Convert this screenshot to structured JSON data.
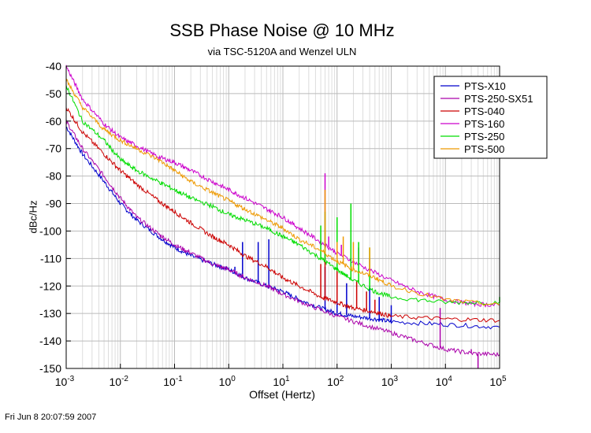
{
  "title": "SSB Phase Noise @ 10 MHz",
  "subtitle": "via TSC-5120A and Wenzel ULN",
  "timestamp": "Fri Jun  8 20:07:59 2007",
  "chart_data": {
    "type": "line",
    "xlabel": "Offset (Hertz)",
    "ylabel": "dBc/Hz",
    "xscale": "log",
    "xlim": [
      0.001,
      100000
    ],
    "ylim": [
      -150,
      -40
    ],
    "x_ticks": [
      {
        "base": "10",
        "exp": "-3"
      },
      {
        "base": "10",
        "exp": "-2"
      },
      {
        "base": "10",
        "exp": "-1"
      },
      {
        "base": "10",
        "exp": "0"
      },
      {
        "base": "10",
        "exp": "1"
      },
      {
        "base": "10",
        "exp": "2"
      },
      {
        "base": "10",
        "exp": "3"
      },
      {
        "base": "10",
        "exp": "4"
      },
      {
        "base": "10",
        "exp": "5"
      }
    ],
    "y_ticks": [
      "-40",
      "-50",
      "-60",
      "-70",
      "-80",
      "-90",
      "-100",
      "-110",
      "-120",
      "-130",
      "-140",
      "-150"
    ],
    "grid": true,
    "legend_position": "top-right",
    "series": [
      {
        "name": "PTS-X10",
        "color": "#0000cc",
        "points": [
          [
            0.001,
            -62
          ],
          [
            0.002,
            -72
          ],
          [
            0.005,
            -82
          ],
          [
            0.01,
            -90
          ],
          [
            0.02,
            -96
          ],
          [
            0.05,
            -102
          ],
          [
            0.1,
            -106
          ],
          [
            0.2,
            -109
          ],
          [
            0.5,
            -112
          ],
          [
            1,
            -114
          ],
          [
            2,
            -117
          ],
          [
            5,
            -120
          ],
          [
            10,
            -122
          ],
          [
            20,
            -125
          ],
          [
            50,
            -128
          ],
          [
            100,
            -130
          ],
          [
            200,
            -131
          ],
          [
            500,
            -132
          ],
          [
            1000,
            -133
          ],
          [
            10000,
            -134
          ],
          [
            100000,
            -135
          ]
        ],
        "spurs": [
          [
            1.3,
            -113
          ],
          [
            1.8,
            -104
          ],
          [
            3.5,
            -104
          ],
          [
            5.5,
            -103
          ],
          [
            60,
            -113
          ],
          [
            100,
            -116
          ],
          [
            150,
            -119
          ],
          [
            400,
            -120
          ],
          [
            600,
            -124
          ],
          [
            1000,
            -127
          ]
        ]
      },
      {
        "name": "PTS-250-SX51",
        "color": "#aa00aa",
        "points": [
          [
            0.001,
            -60
          ],
          [
            0.002,
            -70
          ],
          [
            0.005,
            -80
          ],
          [
            0.01,
            -88
          ],
          [
            0.02,
            -95
          ],
          [
            0.05,
            -101
          ],
          [
            0.1,
            -105
          ],
          [
            0.2,
            -108
          ],
          [
            0.5,
            -112
          ],
          [
            1,
            -114
          ],
          [
            2,
            -117
          ],
          [
            5,
            -120
          ],
          [
            10,
            -123
          ],
          [
            30,
            -127
          ],
          [
            100,
            -131
          ],
          [
            300,
            -134
          ],
          [
            1000,
            -137
          ],
          [
            3000,
            -140
          ],
          [
            10000,
            -143
          ],
          [
            30000,
            -144.5
          ],
          [
            100000,
            -145
          ]
        ],
        "spurs": [
          [
            8000,
            -128
          ],
          [
            30000,
            -143
          ],
          [
            40000,
            -150
          ]
        ]
      },
      {
        "name": "PTS-040",
        "color": "#cc0000",
        "points": [
          [
            0.001,
            -55
          ],
          [
            0.002,
            -64
          ],
          [
            0.005,
            -72
          ],
          [
            0.01,
            -78
          ],
          [
            0.02,
            -83
          ],
          [
            0.05,
            -89
          ],
          [
            0.1,
            -93
          ],
          [
            0.2,
            -97
          ],
          [
            0.5,
            -102
          ],
          [
            1,
            -105
          ],
          [
            2,
            -109
          ],
          [
            5,
            -113
          ],
          [
            10,
            -117
          ],
          [
            20,
            -120
          ],
          [
            50,
            -124
          ],
          [
            100,
            -126
          ],
          [
            200,
            -128
          ],
          [
            500,
            -129.5
          ],
          [
            1000,
            -131
          ],
          [
            10000,
            -132
          ],
          [
            100000,
            -132.5
          ]
        ],
        "spurs": [
          [
            50,
            -112
          ],
          [
            60,
            -108
          ],
          [
            100,
            -112
          ],
          [
            230,
            -118
          ],
          [
            350,
            -122
          ],
          [
            500,
            -125
          ]
        ]
      },
      {
        "name": "PTS-160",
        "color": "#cc00cc",
        "points": [
          [
            0.001,
            -40
          ],
          [
            0.002,
            -52
          ],
          [
            0.005,
            -61
          ],
          [
            0.01,
            -66
          ],
          [
            0.02,
            -69
          ],
          [
            0.05,
            -73
          ],
          [
            0.1,
            -75
          ],
          [
            0.2,
            -78
          ],
          [
            0.5,
            -82
          ],
          [
            1,
            -85
          ],
          [
            2,
            -88
          ],
          [
            5,
            -92
          ],
          [
            10,
            -95
          ],
          [
            20,
            -99
          ],
          [
            50,
            -104
          ],
          [
            100,
            -108
          ],
          [
            300,
            -113
          ],
          [
            1000,
            -118
          ],
          [
            3000,
            -122
          ],
          [
            10000,
            -125
          ],
          [
            30000,
            -126.5
          ],
          [
            100000,
            -127
          ]
        ],
        "spurs": [
          [
            60,
            -79
          ],
          [
            70,
            -102
          ],
          [
            120,
            -105
          ],
          [
            250,
            -106
          ],
          [
            400,
            -110
          ],
          [
            1000,
            -118
          ]
        ]
      },
      {
        "name": "PTS-250",
        "color": "#00dd00",
        "points": [
          [
            0.001,
            -47
          ],
          [
            0.002,
            -60
          ],
          [
            0.005,
            -67
          ],
          [
            0.01,
            -74
          ],
          [
            0.02,
            -78
          ],
          [
            0.05,
            -82
          ],
          [
            0.1,
            -85
          ],
          [
            0.2,
            -88
          ],
          [
            0.5,
            -91
          ],
          [
            1,
            -94
          ],
          [
            2,
            -96
          ],
          [
            5,
            -99
          ],
          [
            10,
            -102
          ],
          [
            20,
            -105
          ],
          [
            50,
            -110
          ],
          [
            100,
            -114
          ],
          [
            200,
            -118
          ],
          [
            500,
            -122
          ],
          [
            1000,
            -124
          ],
          [
            10000,
            -126
          ],
          [
            100000,
            -126
          ]
        ],
        "spurs": [
          [
            50,
            -98
          ],
          [
            60,
            -93
          ],
          [
            100,
            -95
          ],
          [
            180,
            -90
          ],
          [
            250,
            -104
          ],
          [
            400,
            -106
          ],
          [
            100000,
            -124
          ]
        ]
      },
      {
        "name": "PTS-500",
        "color": "#ee9900",
        "points": [
          [
            0.001,
            -45
          ],
          [
            0.002,
            -55
          ],
          [
            0.005,
            -63
          ],
          [
            0.01,
            -67
          ],
          [
            0.02,
            -70
          ],
          [
            0.05,
            -74
          ],
          [
            0.1,
            -78
          ],
          [
            0.2,
            -82
          ],
          [
            0.5,
            -86
          ],
          [
            1,
            -89
          ],
          [
            2,
            -92
          ],
          [
            5,
            -96
          ],
          [
            10,
            -99
          ],
          [
            20,
            -103
          ],
          [
            50,
            -107
          ],
          [
            100,
            -111
          ],
          [
            200,
            -114
          ],
          [
            500,
            -117
          ],
          [
            1000,
            -120
          ],
          [
            10000,
            -125
          ],
          [
            100000,
            -127
          ]
        ],
        "spurs": [
          [
            60,
            -85
          ],
          [
            100,
            -104
          ],
          [
            130,
            -102
          ],
          [
            200,
            -104
          ],
          [
            400,
            -106
          ]
        ]
      }
    ]
  }
}
